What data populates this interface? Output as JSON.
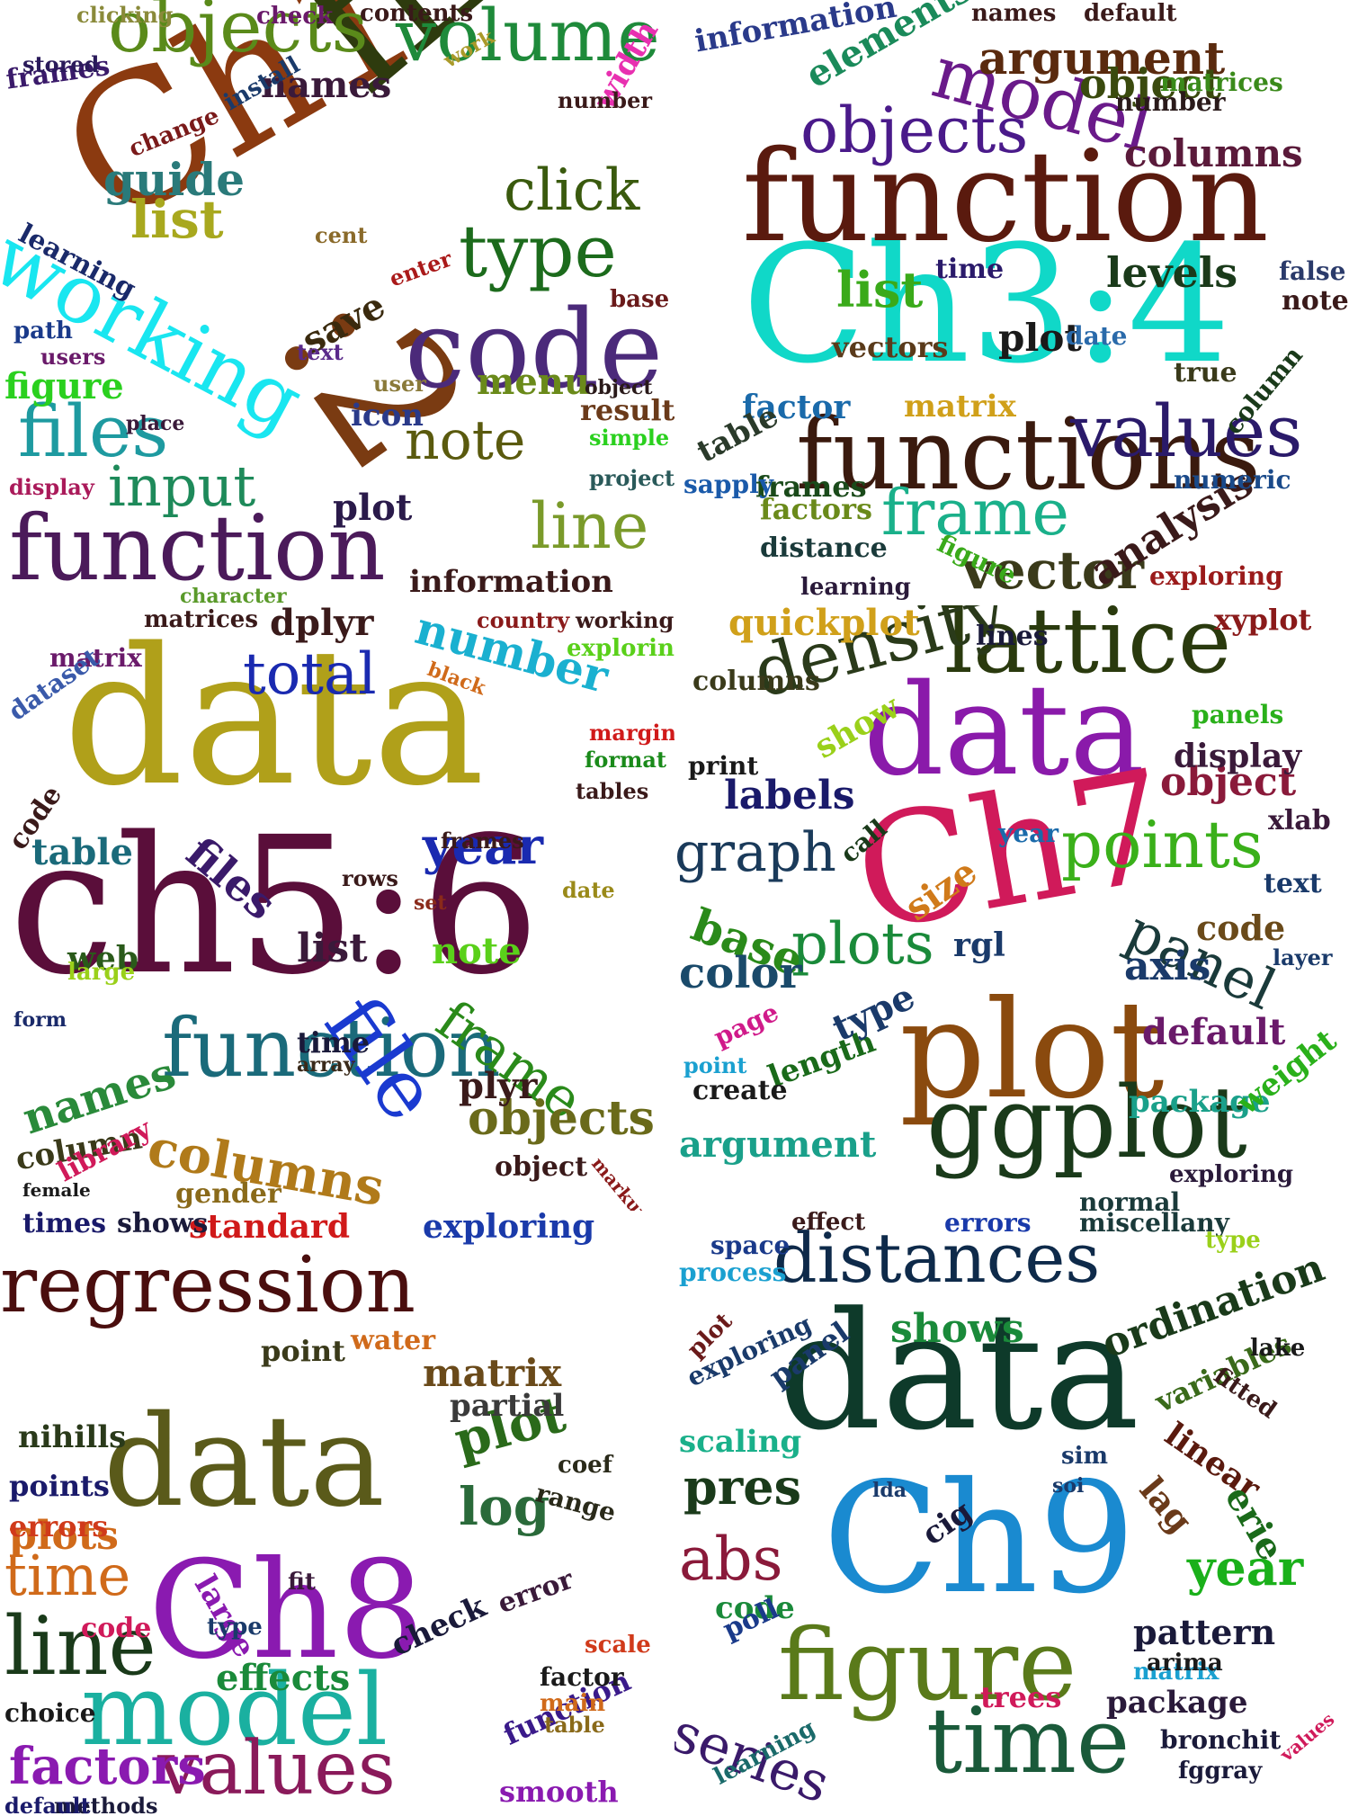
{
  "panels": [
    {
      "key": "p1",
      "box": "outlined",
      "words": [
        {
          "t": "Ch1",
          "c": "#8b3a10"
        },
        {
          "t": "file",
          "c": "#2e3b0e"
        },
        {
          "t": ":2",
          "c": "#7a3b12"
        },
        {
          "t": "code",
          "c": "#4b2a7a"
        },
        {
          "t": "objects",
          "c": "#5a8a1a"
        },
        {
          "t": "volume",
          "c": "#1e8a3a"
        },
        {
          "t": "working",
          "c": "#19e6f0"
        },
        {
          "t": "function",
          "c": "#4b1a5a"
        },
        {
          "t": "files",
          "c": "#1e9aa0"
        },
        {
          "t": "type",
          "c": "#1c6b1c"
        },
        {
          "t": "click",
          "c": "#3a5a0e"
        },
        {
          "t": "note",
          "c": "#5a5a0e"
        },
        {
          "t": "line",
          "c": "#7a9a2a"
        },
        {
          "t": "input",
          "c": "#1e8a5a"
        },
        {
          "t": "list",
          "c": "#a8a81e"
        },
        {
          "t": "guide",
          "c": "#2a7a7a"
        },
        {
          "t": "names",
          "c": "#3a1a3a"
        },
        {
          "t": "menu",
          "c": "#6a8a1a"
        },
        {
          "t": "plot",
          "c": "#2a1a4a"
        },
        {
          "t": "information",
          "c": "#3a1a1a"
        },
        {
          "t": "save",
          "c": "#3a2a0e"
        },
        {
          "t": "figure",
          "c": "#2ad01e"
        },
        {
          "t": "icon",
          "c": "#2a3a8a"
        },
        {
          "t": "result",
          "c": "#6a3a1a"
        },
        {
          "t": "width",
          "c": "#e830b0"
        },
        {
          "t": "learning",
          "c": "#1a2a6a"
        },
        {
          "t": "frames",
          "c": "#3a1a6a"
        },
        {
          "t": "change",
          "c": "#7a1a1a"
        },
        {
          "t": "install",
          "c": "#1a3a6a"
        },
        {
          "t": "path",
          "c": "#1a3a8a"
        },
        {
          "t": "users",
          "c": "#6a1a6a"
        },
        {
          "t": "stored",
          "c": "#2a1a5a"
        },
        {
          "t": "clicking",
          "c": "#8a8a3a"
        },
        {
          "t": "check",
          "c": "#6a1a6a"
        },
        {
          "t": "contents",
          "c": "#3a1a1a"
        },
        {
          "t": "number",
          "c": "#3a1a1a"
        },
        {
          "t": "work",
          "c": "#aa9a2a"
        },
        {
          "t": "cent",
          "c": "#8a6a2a"
        },
        {
          "t": "enter",
          "c": "#aa1a1a"
        },
        {
          "t": "text",
          "c": "#5a2a8a"
        },
        {
          "t": "user",
          "c": "#8a7a3a"
        },
        {
          "t": "object",
          "c": "#2a1a1a"
        },
        {
          "t": "simple",
          "c": "#2ad01e"
        },
        {
          "t": "project",
          "c": "#2a5a5a"
        },
        {
          "t": "display",
          "c": "#aa1a5a"
        },
        {
          "t": "place",
          "c": "#3a1a3a"
        },
        {
          "t": "base",
          "c": "#6a1a1a"
        },
        {
          "t": "character",
          "c": "#5a9a2a"
        }
      ]
    },
    {
      "key": "p2",
      "box": "outlined",
      "words": [
        {
          "t": "Ch3:4",
          "c": "#10d8c8"
        },
        {
          "t": "function",
          "c": "#5a1a0e"
        },
        {
          "t": "functions",
          "c": "#3a1a0e"
        },
        {
          "t": "model",
          "c": "#6a1a8a"
        },
        {
          "t": "objects",
          "c": "#4a1a8a"
        },
        {
          "t": "values",
          "c": "#2a1a6a"
        },
        {
          "t": "frame",
          "c": "#1ab08a"
        },
        {
          "t": "vector",
          "c": "#3a3a1a"
        },
        {
          "t": "analysis",
          "c": "#3a1a1a"
        },
        {
          "t": "argument",
          "c": "#5a2a0e"
        },
        {
          "t": "object",
          "c": "#3a4a0e"
        },
        {
          "t": "columns",
          "c": "#5a1a3a"
        },
        {
          "t": "elements",
          "c": "#1a8a5a"
        },
        {
          "t": "information",
          "c": "#2a3a8a"
        },
        {
          "t": "list",
          "c": "#3aaa1a"
        },
        {
          "t": "vectors",
          "c": "#5a3a1a"
        },
        {
          "t": "matrix",
          "c": "#d0a01a"
        },
        {
          "t": "levels",
          "c": "#1a3a1a"
        },
        {
          "t": "plot",
          "c": "#1a1a1a"
        },
        {
          "t": "factor",
          "c": "#1a6aaa"
        },
        {
          "t": "table",
          "c": "#2a3a2a"
        },
        {
          "t": "frames",
          "c": "#1a4a1a"
        },
        {
          "t": "factors",
          "c": "#6a8a1a"
        },
        {
          "t": "distance",
          "c": "#1a3a3a"
        },
        {
          "t": "learning",
          "c": "#2a1a3a"
        },
        {
          "t": "figure",
          "c": "#3aaa1a"
        },
        {
          "t": "column",
          "c": "#1a3a1a"
        },
        {
          "t": "numeric",
          "c": "#1a4a8a"
        },
        {
          "t": "number",
          "c": "#2a1a1a"
        },
        {
          "t": "matrices",
          "c": "#3a8a1a"
        },
        {
          "t": "date",
          "c": "#2a6aaa"
        },
        {
          "t": "true",
          "c": "#3a3a1a"
        },
        {
          "t": "note",
          "c": "#3a1a1a"
        },
        {
          "t": "false",
          "c": "#2a3a6a"
        },
        {
          "t": "time",
          "c": "#2a1a6a"
        },
        {
          "t": "sapply",
          "c": "#1a5aaa"
        },
        {
          "t": "exploring",
          "c": "#9a1a1a"
        },
        {
          "t": "names",
          "c": "#3a1a1a"
        },
        {
          "t": "default",
          "c": "#3a1a1a"
        }
      ]
    },
    {
      "key": "p3",
      "box": "none",
      "words": [
        {
          "t": "data",
          "c": "#b0a01a"
        },
        {
          "t": "ch5:6",
          "c": "#5a0e3a"
        },
        {
          "t": "function",
          "c": "#1a6a7a"
        },
        {
          "t": "file",
          "c": "#1a3ad0"
        },
        {
          "t": "frame",
          "c": "#2a8a1a"
        },
        {
          "t": "total",
          "c": "#1a2ab0"
        },
        {
          "t": "number",
          "c": "#1ab0d0"
        },
        {
          "t": "year",
          "c": "#1a2ab0"
        },
        {
          "t": "files",
          "c": "#3a1a6a"
        },
        {
          "t": "columns",
          "c": "#b07a1a"
        },
        {
          "t": "objects",
          "c": "#6a6a1a"
        },
        {
          "t": "names",
          "c": "#2a8a3a"
        },
        {
          "t": "table",
          "c": "#1a6a7a"
        },
        {
          "t": "list",
          "c": "#3a1a3a"
        },
        {
          "t": "note",
          "c": "#5ad01a"
        },
        {
          "t": "dplyr",
          "c": "#3a1a1a"
        },
        {
          "t": "plyr",
          "c": "#3a1a1a"
        },
        {
          "t": "column",
          "c": "#3a3a1a"
        },
        {
          "t": "library",
          "c": "#d01a5a"
        },
        {
          "t": "gender",
          "c": "#8a6a1a"
        },
        {
          "t": "object",
          "c": "#3a1a1a"
        },
        {
          "t": "code",
          "c": "#3a1a1a"
        },
        {
          "t": "web",
          "c": "#2a5a1a"
        },
        {
          "t": "time",
          "c": "#1a1a3a"
        },
        {
          "t": "matrix",
          "c": "#6a1a6a"
        },
        {
          "t": "dataset",
          "c": "#3a5aaa"
        },
        {
          "t": "matrices",
          "c": "#3a1a1a"
        },
        {
          "t": "tables",
          "c": "#3a1a1a"
        },
        {
          "t": "format",
          "c": "#1a8a1a"
        },
        {
          "t": "margin",
          "c": "#d01a1a"
        },
        {
          "t": "exploring",
          "c": "#5ad01a"
        },
        {
          "t": "working",
          "c": "#3a1a1a"
        },
        {
          "t": "country",
          "c": "#8a1a1a"
        },
        {
          "t": "black",
          "c": "#d06a1a"
        },
        {
          "t": "date",
          "c": "#9a8a1a"
        },
        {
          "t": "rows",
          "c": "#3a1a1a"
        },
        {
          "t": "frames",
          "c": "#3a1a1a"
        },
        {
          "t": "set",
          "c": "#8a2a1a"
        },
        {
          "t": "array",
          "c": "#3a2a1a"
        },
        {
          "t": "large",
          "c": "#9ad01a"
        },
        {
          "t": "form",
          "c": "#1a2a6a"
        },
        {
          "t": "female",
          "c": "#1a1a1a"
        },
        {
          "t": "markup",
          "c": "#8a1a1a"
        }
      ]
    },
    {
      "key": "p4",
      "box": "outlined",
      "words": [
        {
          "t": "data",
          "c": "#8a1aaa"
        },
        {
          "t": "Ch7",
          "c": "#d01a5a"
        },
        {
          "t": "plot",
          "c": "#8a4a0e"
        },
        {
          "t": "ggplot",
          "c": "#1a3a1a"
        },
        {
          "t": "lattice",
          "c": "#2a3a0e"
        },
        {
          "t": "density",
          "c": "#2a3a1a"
        },
        {
          "t": "points",
          "c": "#3ab01a"
        },
        {
          "t": "plots",
          "c": "#1a8a3a"
        },
        {
          "t": "panel",
          "c": "#1a3a3a"
        },
        {
          "t": "graph",
          "c": "#1a3a5a"
        },
        {
          "t": "labels",
          "c": "#1a1a6a"
        },
        {
          "t": "object",
          "c": "#8a1a3a"
        },
        {
          "t": "base",
          "c": "#2a8a1a"
        },
        {
          "t": "color",
          "c": "#1a4a6a"
        },
        {
          "t": "axis",
          "c": "#1a3a6a"
        },
        {
          "t": "default",
          "c": "#6a1a6a"
        },
        {
          "t": "package",
          "c": "#1aa08a"
        },
        {
          "t": "argument",
          "c": "#1aa08a"
        },
        {
          "t": "length",
          "c": "#1a6a1a"
        },
        {
          "t": "code",
          "c": "#6a4a1a"
        },
        {
          "t": "display",
          "c": "#3a1a3a"
        },
        {
          "t": "size",
          "c": "#d07a1a"
        },
        {
          "t": "quickplot",
          "c": "#d0a01a"
        },
        {
          "t": "columns",
          "c": "#3a3a1a"
        },
        {
          "t": "xyplot",
          "c": "#8a1a1a"
        },
        {
          "t": "lines",
          "c": "#1a1a3a"
        },
        {
          "t": "panels",
          "c": "#2ab01a"
        },
        {
          "t": "type",
          "c": "#1a3a6a"
        },
        {
          "t": "text",
          "c": "#1a3a6a"
        },
        {
          "t": "weight",
          "c": "#2ab01a"
        },
        {
          "t": "rgl",
          "c": "#1a3a6a"
        },
        {
          "t": "show",
          "c": "#9ad01a"
        },
        {
          "t": "xlab",
          "c": "#3a1a3a"
        },
        {
          "t": "layer",
          "c": "#1a3a6a"
        },
        {
          "t": "normal",
          "c": "#1a3a3a"
        },
        {
          "t": "exploring",
          "c": "#2a1a3a"
        },
        {
          "t": "create",
          "c": "#1a1a1a"
        },
        {
          "t": "point",
          "c": "#1aa0d0"
        },
        {
          "t": "page",
          "c": "#d01a8a"
        },
        {
          "t": "call",
          "c": "#1a3a1a"
        },
        {
          "t": "year",
          "c": "#1a6aaa"
        },
        {
          "t": "print",
          "c": "#1a1a1a"
        }
      ]
    },
    {
      "key": "p5",
      "box": "outlined",
      "words": [
        {
          "t": "data",
          "c": "#5a5a1a"
        },
        {
          "t": "Ch8",
          "c": "#8a1ab0"
        },
        {
          "t": "regression",
          "c": "#4a0e0e"
        },
        {
          "t": "model",
          "c": "#1ab0a0"
        },
        {
          "t": "values",
          "c": "#8a1a5a"
        },
        {
          "t": "line",
          "c": "#1a3a1a"
        },
        {
          "t": "time",
          "c": "#d06a1a"
        },
        {
          "t": "log",
          "c": "#2a6a3a"
        },
        {
          "t": "plot",
          "c": "#2a6a1a"
        },
        {
          "t": "factors",
          "c": "#8a1ab0"
        },
        {
          "t": "effects",
          "c": "#1a8a3a"
        },
        {
          "t": "matrix",
          "c": "#6a4a1a"
        },
        {
          "t": "partial",
          "c": "#3a3a3a"
        },
        {
          "t": "plots",
          "c": "#d06a1a"
        },
        {
          "t": "points",
          "c": "#1a1a6a"
        },
        {
          "t": "errors",
          "c": "#d03a1a"
        },
        {
          "t": "large",
          "c": "#8a1ab0"
        },
        {
          "t": "check",
          "c": "#1a1a3a"
        },
        {
          "t": "error",
          "c": "#3a1a3a"
        },
        {
          "t": "function",
          "c": "#3a1a8a"
        },
        {
          "t": "standard",
          "c": "#d01a1a"
        },
        {
          "t": "exploring",
          "c": "#1a3aaa"
        },
        {
          "t": "times",
          "c": "#1a1a6a"
        },
        {
          "t": "shows",
          "c": "#1a1a3a"
        },
        {
          "t": "nihills",
          "c": "#2a3a1a"
        },
        {
          "t": "point",
          "c": "#3a3a1a"
        },
        {
          "t": "water",
          "c": "#d06a1a"
        },
        {
          "t": "range",
          "c": "#2a2a1a"
        },
        {
          "t": "coef",
          "c": "#2a2a1a"
        },
        {
          "t": "code",
          "c": "#d01a5a"
        },
        {
          "t": "fit",
          "c": "#3a1a3a"
        },
        {
          "t": "smooth",
          "c": "#8a1ab0"
        },
        {
          "t": "methods",
          "c": "#1a1a3a"
        },
        {
          "t": "default",
          "c": "#1a1a6a"
        },
        {
          "t": "choice",
          "c": "#1a1a1a"
        },
        {
          "t": "factor",
          "c": "#1a1a1a"
        },
        {
          "t": "scale",
          "c": "#d03a1a"
        },
        {
          "t": "main",
          "c": "#d06a1a"
        },
        {
          "t": "table",
          "c": "#8a6a1a"
        },
        {
          "t": "type",
          "c": "#1a3a6a"
        }
      ]
    },
    {
      "key": "p6",
      "box": "none",
      "words": [
        {
          "t": "data",
          "c": "#0e3a2a"
        },
        {
          "t": "Ch9",
          "c": "#1a8ad0"
        },
        {
          "t": "distances",
          "c": "#0e2a4a"
        },
        {
          "t": "figure",
          "c": "#5a7a1a"
        },
        {
          "t": "time",
          "c": "#1a5a3a"
        },
        {
          "t": "series",
          "c": "#3a1a6a"
        },
        {
          "t": "abs",
          "c": "#8a1a3a"
        },
        {
          "t": "pres",
          "c": "#1a3a1a"
        },
        {
          "t": "year",
          "c": "#1ab01a"
        },
        {
          "t": "ordination",
          "c": "#1a3a1a"
        },
        {
          "t": "shows",
          "c": "#1a8a3a"
        },
        {
          "t": "pattern",
          "c": "#1a1a3a"
        },
        {
          "t": "linear",
          "c": "#5a1a0e"
        },
        {
          "t": "lag",
          "c": "#6a3a1a"
        },
        {
          "t": "erie",
          "c": "#1a6a1a"
        },
        {
          "t": "variables",
          "c": "#3a6a1a"
        },
        {
          "t": "package",
          "c": "#2a1a3a"
        },
        {
          "t": "trees",
          "c": "#d01a5a"
        },
        {
          "t": "code",
          "c": "#1a8a3a"
        },
        {
          "t": "poll",
          "c": "#1a3a8a"
        },
        {
          "t": "cig",
          "c": "#1a1a3a"
        },
        {
          "t": "scaling",
          "c": "#1ab08a"
        },
        {
          "t": "panel",
          "c": "#1a3a6a"
        },
        {
          "t": "exploring",
          "c": "#1a3a6a"
        },
        {
          "t": "space",
          "c": "#1a3a8a"
        },
        {
          "t": "process",
          "c": "#1aa0d0"
        },
        {
          "t": "errors",
          "c": "#1a3aaa"
        },
        {
          "t": "miscellany",
          "c": "#1a3a3a"
        },
        {
          "t": "effect",
          "c": "#3a1a1a"
        },
        {
          "t": "matrix",
          "c": "#1aa0d0"
        },
        {
          "t": "arima",
          "c": "#1a1a1a"
        },
        {
          "t": "bronchit",
          "c": "#1a1a3a"
        },
        {
          "t": "fggray",
          "c": "#1a1a3a"
        },
        {
          "t": "learning",
          "c": "#1a6a6a"
        },
        {
          "t": "type",
          "c": "#9ad01a"
        },
        {
          "t": "lake",
          "c": "#1a1a1a"
        },
        {
          "t": "fitted",
          "c": "#3a1a1a"
        },
        {
          "t": "plot",
          "c": "#6a1a1a"
        },
        {
          "t": "sim",
          "c": "#1a3a6a"
        },
        {
          "t": "soi",
          "c": "#1a3a6a"
        },
        {
          "t": "lda",
          "c": "#1a3a6a"
        },
        {
          "t": "values",
          "c": "#d01a5a"
        }
      ]
    }
  ]
}
